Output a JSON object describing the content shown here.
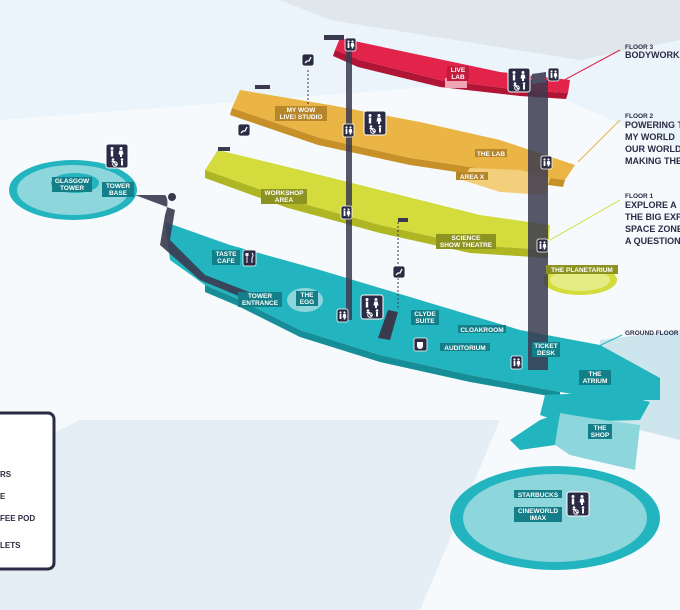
{
  "colors": {
    "background": "#eaf4fa",
    "ground": "#22b5bf",
    "floor1": "#d3dc3c",
    "floor2": "#ebb545",
    "floor3": "#e2244b",
    "dark": "#3a3a4f",
    "navy": "#2b2b45"
  },
  "floors": {
    "floor3": {
      "tag": "FLOOR 3",
      "title_lines": [
        "BODYWORKS"
      ]
    },
    "floor2": {
      "tag": "FLOOR 2",
      "title_lines": [
        "POWERING T",
        "MY WORLD",
        "OUR WORLD",
        "MAKING THE"
      ]
    },
    "floor1": {
      "tag": "FLOOR 1",
      "title_lines": [
        "EXPLORE A",
        "THE BIG EXP",
        "SPACE ZONE",
        "A QUESTION"
      ]
    },
    "ground": {
      "tag": "GROUND FLOOR"
    }
  },
  "labels": {
    "live_lab": [
      "LIVE",
      "LAB"
    ],
    "my_wow": [
      "MY WOW",
      "LIVE! STUDIO"
    ],
    "the_lab": [
      "THE LAB"
    ],
    "area_x": [
      "AREA X"
    ],
    "workshop": [
      "WORKSHOP",
      "AREA"
    ],
    "science_show": [
      "SCIENCE",
      "SHOW THEATRE"
    ],
    "planetarium": [
      "THE PLANETARIUM"
    ],
    "glasgow_tower": [
      "GLASGOW",
      "TOWER"
    ],
    "tower_base": [
      "TOWER",
      "BASE"
    ],
    "taste_cafe": [
      "TASTE",
      "CAFE"
    ],
    "tower_entrance": [
      "TOWER",
      "ENTRANCE"
    ],
    "the_egg": [
      "THE",
      "EGG"
    ],
    "clyde_suite": [
      "CLYDE",
      "SUITE"
    ],
    "cloakroom": [
      "CLOAKROOM"
    ],
    "auditorium": [
      "AUDITORIUM"
    ],
    "ticket_desk": [
      "TICKET",
      "DESK"
    ],
    "the_atrium": [
      "THE",
      "ATRIUM"
    ],
    "the_shop": [
      "THE",
      "SHOP"
    ],
    "starbucks": [
      "STARBUCKS"
    ],
    "cineworld": [
      "CINEWORLD",
      "IMAX"
    ]
  },
  "legend": {
    "items": [
      "RS",
      "E",
      "FEE POD",
      "LETS"
    ]
  },
  "icons": {
    "toilets": "toilets-icon",
    "accessible": "accessible-toilet-icon",
    "lift": "lift-icon",
    "escalator": "escalator-icon",
    "cafe": "cutlery-icon",
    "coffee": "coffee-icon"
  }
}
